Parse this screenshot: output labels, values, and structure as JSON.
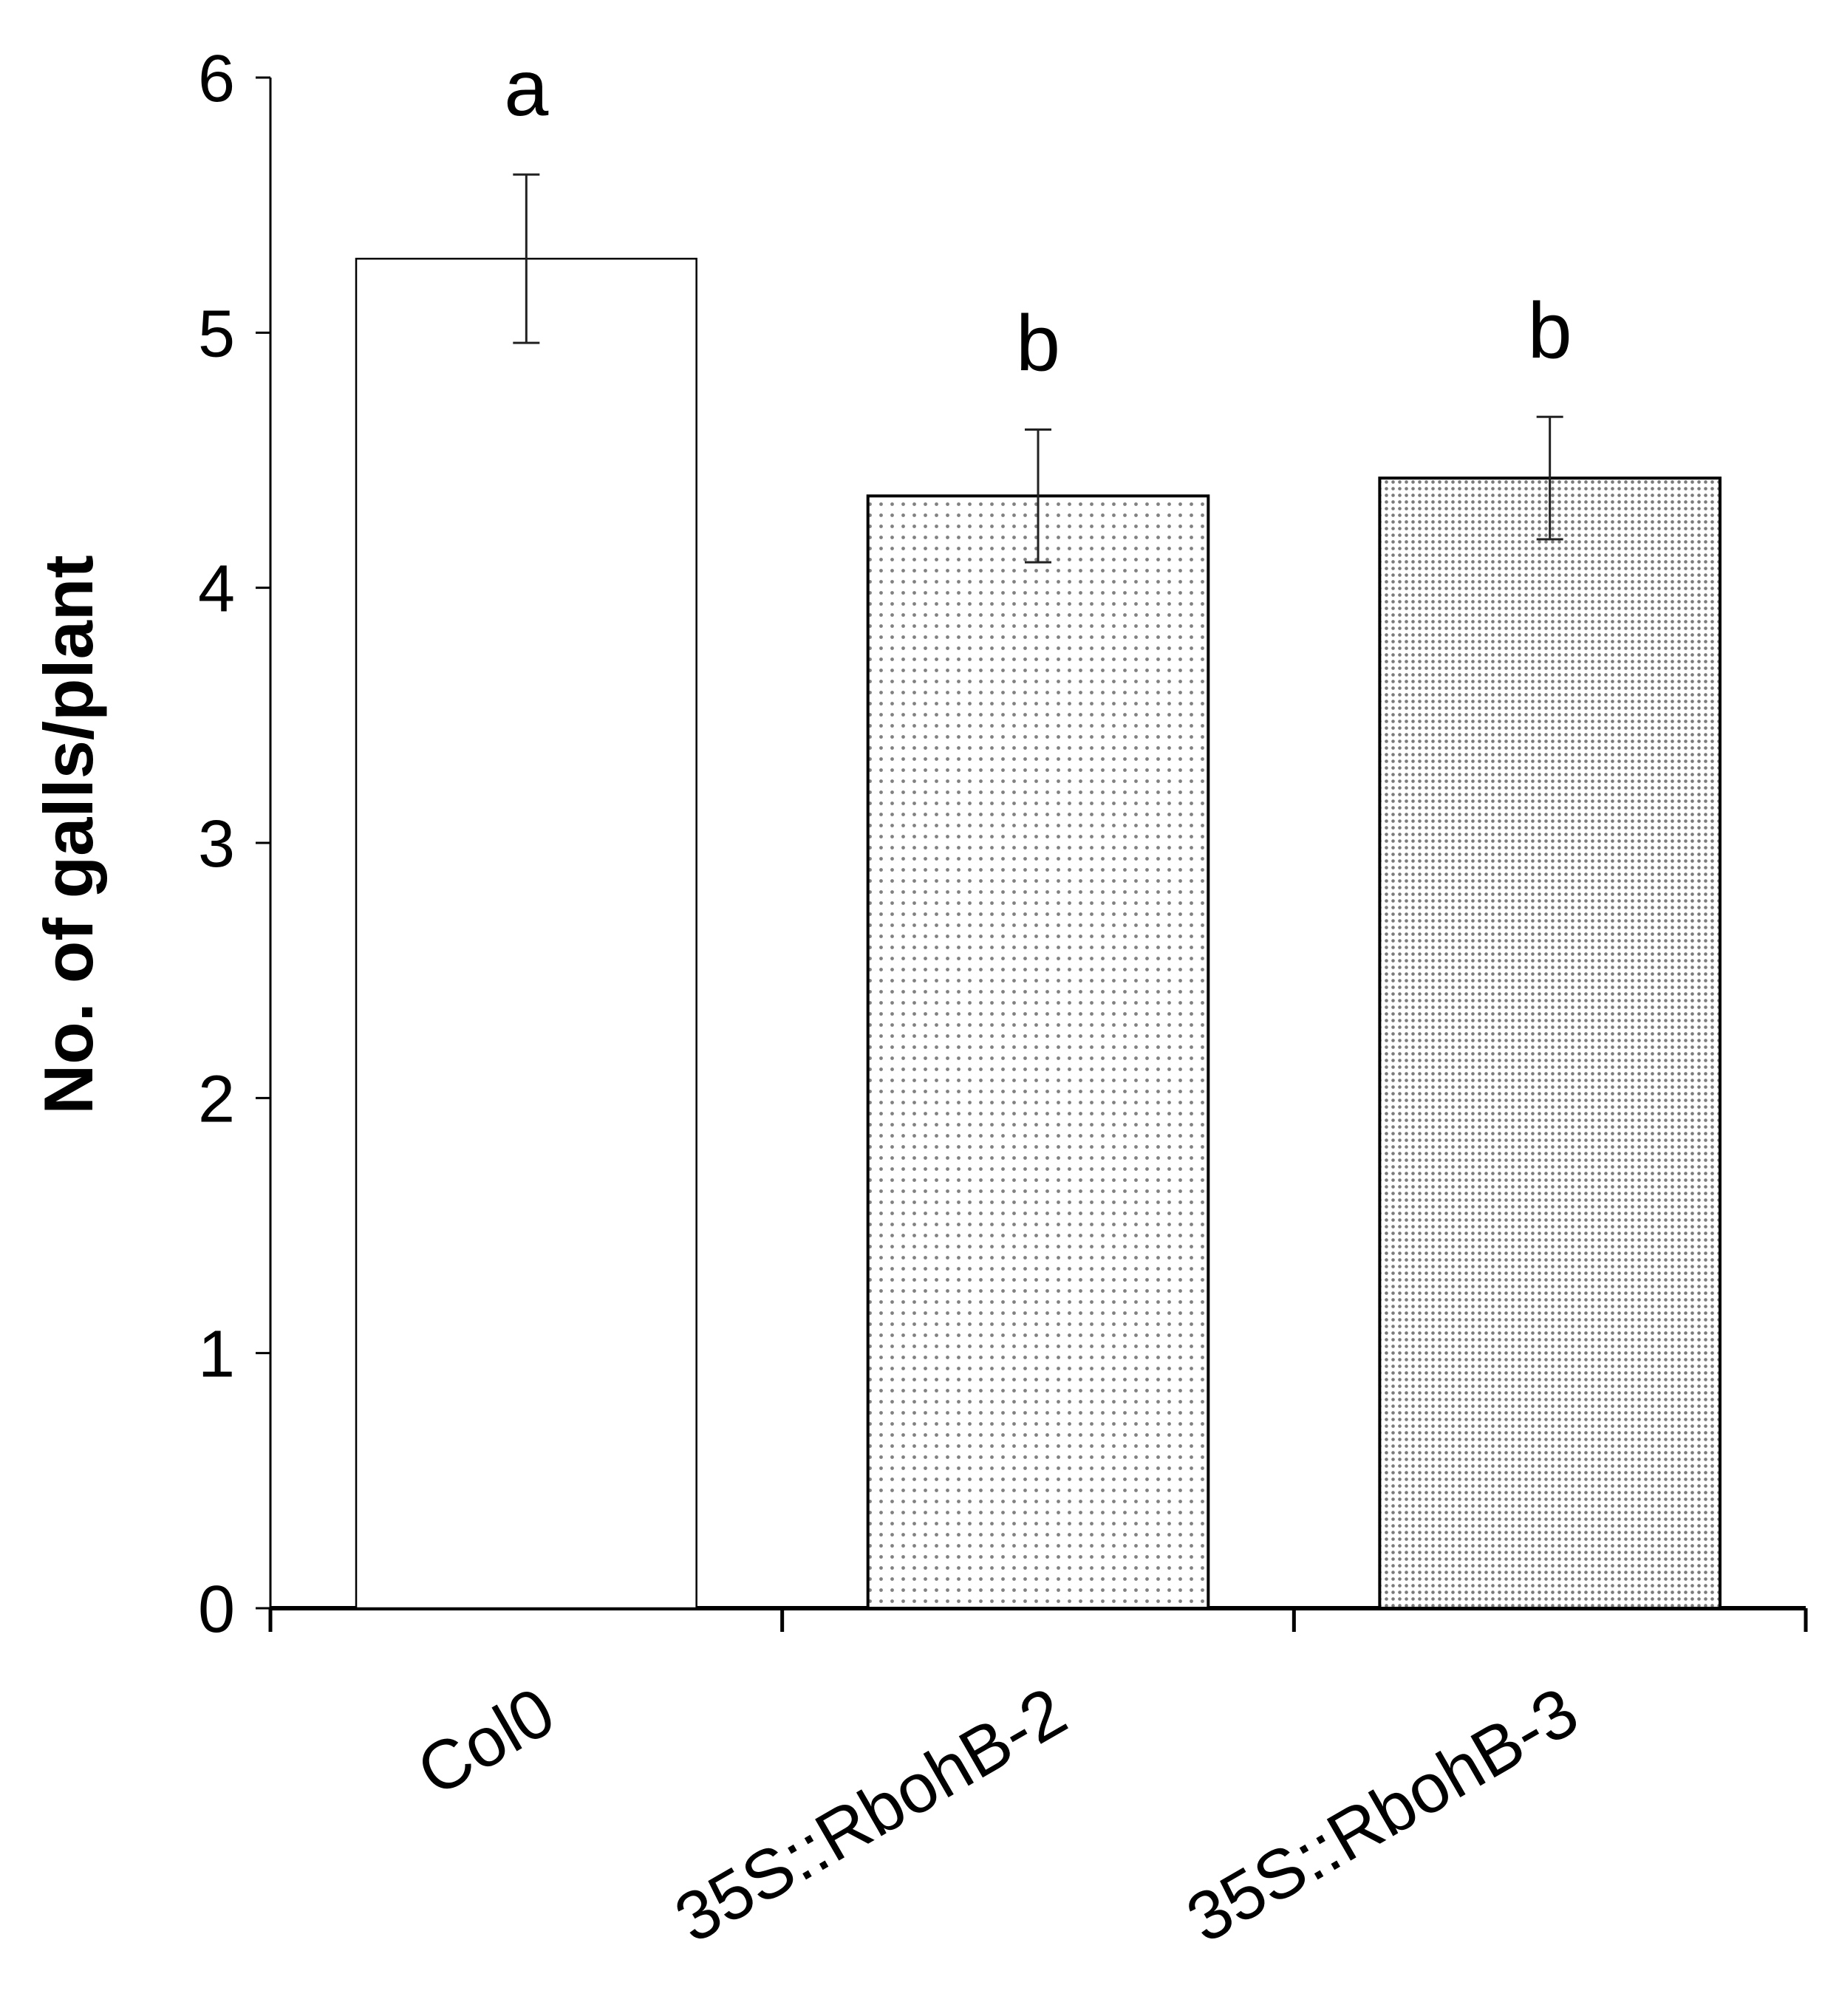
{
  "chart_data": {
    "type": "bar",
    "title": "",
    "xlabel": "",
    "ylabel": "No. of galls/plant",
    "ylim": [
      0,
      6
    ],
    "yticks": [
      0,
      1,
      2,
      3,
      4,
      5,
      6
    ],
    "grid": false,
    "legend": "none",
    "categories": [
      "Col0",
      "35S::RbohB-2",
      "35S::RbohB-3"
    ],
    "values": [
      5.29,
      4.36,
      4.43
    ],
    "errors": [
      0.33,
      0.26,
      0.24
    ],
    "significance": [
      "a",
      "b",
      "b"
    ],
    "fills": [
      "none",
      "sparse-dots",
      "dense-dots"
    ]
  }
}
